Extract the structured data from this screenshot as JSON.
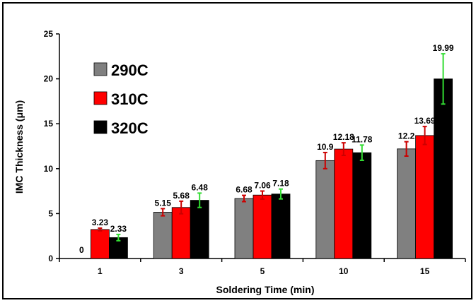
{
  "chart_data": {
    "type": "bar",
    "title": "",
    "xlabel": "Soldering Time (min)",
    "ylabel": "IMC Thickness (μm)",
    "ylim": [
      0,
      25
    ],
    "yticks": [
      0,
      5,
      10,
      15,
      20,
      25
    ],
    "categories": [
      "1",
      "3",
      "5",
      "10",
      "15"
    ],
    "grid": false,
    "legend_position": "upper-left",
    "series": [
      {
        "name": "290C",
        "color": "#808080",
        "values": [
          0,
          5.15,
          6.68,
          10.9,
          12.2
        ],
        "labels": [
          "0",
          "5.15",
          "6.68",
          "10.9",
          "12.2"
        ],
        "error": [
          0,
          0.4,
          0.35,
          0.9,
          0.8
        ],
        "error_color": "#cc0000"
      },
      {
        "name": "310C",
        "color": "#ff0000",
        "values": [
          3.23,
          5.68,
          7.06,
          12.18,
          13.69
        ],
        "labels": [
          "3.23",
          "5.68",
          "7.06",
          "12.18",
          "13.69"
        ],
        "error": [
          0.15,
          0.7,
          0.45,
          0.7,
          1.0
        ],
        "error_color": "#cc0000"
      },
      {
        "name": "320C",
        "color": "#000000",
        "values": [
          2.33,
          6.48,
          7.18,
          11.78,
          19.99
        ],
        "labels": [
          "2.33",
          "6.48",
          "7.18",
          "11.78",
          "19.99"
        ],
        "error": [
          0.35,
          0.8,
          0.55,
          0.85,
          2.8
        ],
        "error_color": "#33dd33"
      }
    ]
  }
}
